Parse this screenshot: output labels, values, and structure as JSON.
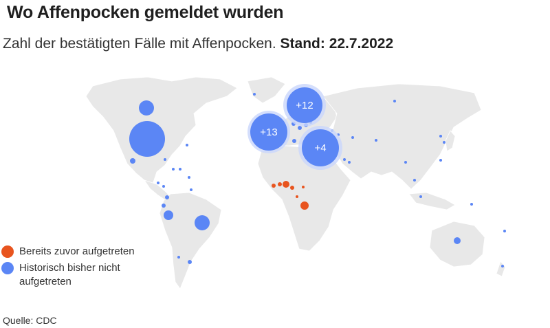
{
  "title": "Wo Affenpocken gemeldet wurden",
  "subtitle": {
    "text": "Zahl der bestätigten Fälle mit Affenpocken.",
    "date": "Stand: 22.7.2022"
  },
  "legend": [
    {
      "label": "Bereits zuvor aufgetreten",
      "color": "#e8541e"
    },
    {
      "label": "Historisch bisher nicht aufgetreten",
      "color": "#5b86f5"
    }
  ],
  "source": "Quelle: CDC",
  "colors": {
    "land": "#e8e8e8",
    "border": "#ffffff",
    "endemic": "#e8541e",
    "non_endemic": "#5b86f5",
    "cluster_halo": "#c9d6fb"
  },
  "clusters": [
    {
      "label": "+12",
      "region": "Nordeuropa",
      "category": "non_endemic"
    },
    {
      "label": "+13",
      "region": "Westeuropa",
      "category": "non_endemic"
    },
    {
      "label": "+4",
      "region": "Südosteuropa",
      "category": "non_endemic"
    }
  ]
}
